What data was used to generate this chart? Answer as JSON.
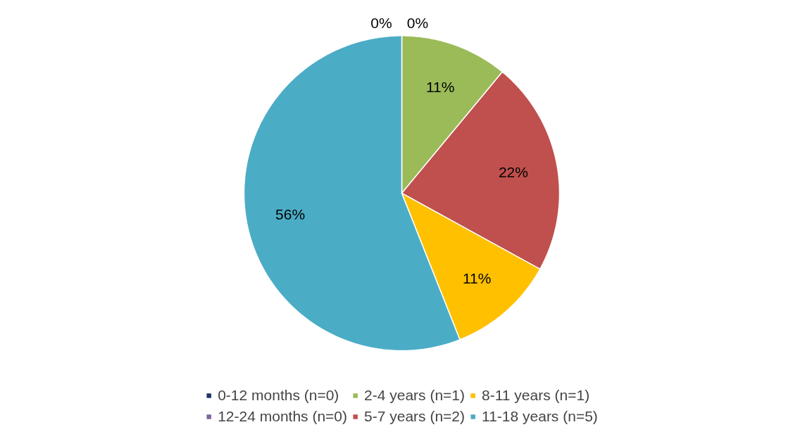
{
  "chart_data": {
    "type": "pie",
    "categories": [
      "0-12 months (n=0)",
      "12-24 months (n=0)",
      "2-4 years (n=1)",
      "5-7 years (n=2)",
      "8-11 years (n=1)",
      "11-18 years (n=5)"
    ],
    "values": [
      0,
      0,
      11,
      22,
      11,
      56
    ],
    "value_labels": [
      "0%",
      "0%",
      "11%",
      "22%",
      "11%",
      "56%"
    ],
    "colors": [
      "#1f3864",
      "#8064a2",
      "#9bbb59",
      "#c0504d",
      "#ffc000",
      "#4bacc6"
    ],
    "legend": "bottom"
  }
}
